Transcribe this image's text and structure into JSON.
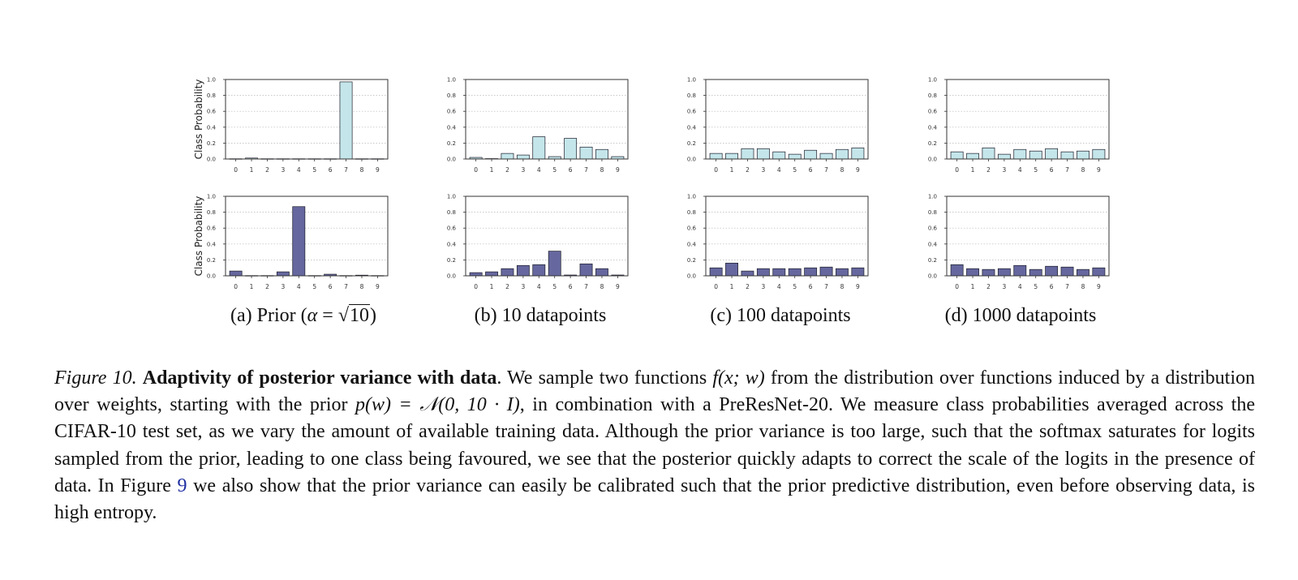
{
  "ylabel": "Class Probability",
  "y_ticks": [
    "0.0",
    "0.2",
    "0.4",
    "0.6",
    "0.8",
    "1.0"
  ],
  "x_ticks": [
    "0",
    "1",
    "2",
    "3",
    "4",
    "5",
    "6",
    "7",
    "8",
    "9"
  ],
  "colors": {
    "sample1": "#c4e6ea",
    "sample2": "#65679e",
    "edge": "#1c1c2a",
    "grid": "#b5b5b5"
  },
  "subcaptions": [
    {
      "label": "(a)",
      "text_pre": "Prior (",
      "math_var": "α",
      "eq": " = ",
      "sqrt_arg": "10",
      "text_post": ")"
    },
    {
      "label": "(b)",
      "text": "10 datapoints"
    },
    {
      "label": "(c)",
      "text": "100 datapoints"
    },
    {
      "label": "(d)",
      "text": "1000 datapoints"
    }
  ],
  "chart_data": [
    {
      "type": "bar",
      "panel": "a",
      "row": 1,
      "ylabel": "Class Probability",
      "ylim": [
        0,
        1
      ],
      "categories": [
        "0",
        "1",
        "2",
        "3",
        "4",
        "5",
        "6",
        "7",
        "8",
        "9"
      ],
      "values": [
        0.003,
        0.012,
        0.003,
        0.003,
        0.003,
        0.003,
        0.003,
        0.97,
        0.003,
        0.003
      ]
    },
    {
      "type": "bar",
      "panel": "b",
      "row": 1,
      "ylabel": "",
      "ylim": [
        0,
        1
      ],
      "categories": [
        "0",
        "1",
        "2",
        "3",
        "4",
        "5",
        "6",
        "7",
        "8",
        "9"
      ],
      "values": [
        0.02,
        0.005,
        0.07,
        0.05,
        0.28,
        0.03,
        0.26,
        0.15,
        0.12,
        0.03
      ]
    },
    {
      "type": "bar",
      "panel": "c",
      "row": 1,
      "ylabel": "",
      "ylim": [
        0,
        1
      ],
      "categories": [
        "0",
        "1",
        "2",
        "3",
        "4",
        "5",
        "6",
        "7",
        "8",
        "9"
      ],
      "values": [
        0.07,
        0.07,
        0.13,
        0.13,
        0.09,
        0.06,
        0.11,
        0.07,
        0.12,
        0.14
      ]
    },
    {
      "type": "bar",
      "panel": "d",
      "row": 1,
      "ylabel": "",
      "ylim": [
        0,
        1
      ],
      "categories": [
        "0",
        "1",
        "2",
        "3",
        "4",
        "5",
        "6",
        "7",
        "8",
        "9"
      ],
      "values": [
        0.09,
        0.07,
        0.14,
        0.06,
        0.12,
        0.1,
        0.13,
        0.09,
        0.1,
        0.12
      ]
    },
    {
      "type": "bar",
      "panel": "a",
      "row": 2,
      "ylabel": "Class Probability",
      "ylim": [
        0,
        1
      ],
      "categories": [
        "0",
        "1",
        "2",
        "3",
        "4",
        "5",
        "6",
        "7",
        "8",
        "9"
      ],
      "values": [
        0.06,
        0.003,
        0.003,
        0.05,
        0.87,
        0.003,
        0.02,
        0.003,
        0.008,
        0.003
      ]
    },
    {
      "type": "bar",
      "panel": "b",
      "row": 2,
      "ylabel": "",
      "ylim": [
        0,
        1
      ],
      "categories": [
        "0",
        "1",
        "2",
        "3",
        "4",
        "5",
        "6",
        "7",
        "8",
        "9"
      ],
      "values": [
        0.04,
        0.05,
        0.09,
        0.13,
        0.14,
        0.31,
        0.01,
        0.15,
        0.09,
        0.01
      ]
    },
    {
      "type": "bar",
      "panel": "c",
      "row": 2,
      "ylabel": "",
      "ylim": [
        0,
        1
      ],
      "categories": [
        "0",
        "1",
        "2",
        "3",
        "4",
        "5",
        "6",
        "7",
        "8",
        "9"
      ],
      "values": [
        0.1,
        0.16,
        0.06,
        0.09,
        0.09,
        0.09,
        0.1,
        0.11,
        0.09,
        0.1
      ]
    },
    {
      "type": "bar",
      "panel": "d",
      "row": 2,
      "ylabel": "",
      "ylim": [
        0,
        1
      ],
      "categories": [
        "0",
        "1",
        "2",
        "3",
        "4",
        "5",
        "6",
        "7",
        "8",
        "9"
      ],
      "values": [
        0.14,
        0.09,
        0.08,
        0.09,
        0.13,
        0.08,
        0.12,
        0.11,
        0.08,
        0.1
      ]
    }
  ],
  "caption": {
    "label": "Figure 10.",
    "title": "Adaptivity of posterior variance with data",
    "s1": ". We sample two functions ",
    "m1": "f(x; w)",
    "s2": " from the distribution over functions induced by a distribution over weights, starting with the prior ",
    "m2": "p(w) = 𝒩(0, 10 · I)",
    "s3": ", in combination with a PreResNet-20. We measure class probabilities averaged across the CIFAR-10 test set, as we vary the amount of available training data. Although the prior variance is too large, such that the softmax saturates for logits sampled from the prior, leading to one class being favoured, we see that the posterior quickly adapts to correct the scale of the logits in the presence of data. In Figure ",
    "ref": "9",
    "s4": " we also show that the prior variance can easily be calibrated such that the prior predictive distribution, even before observing data, is high entropy."
  }
}
